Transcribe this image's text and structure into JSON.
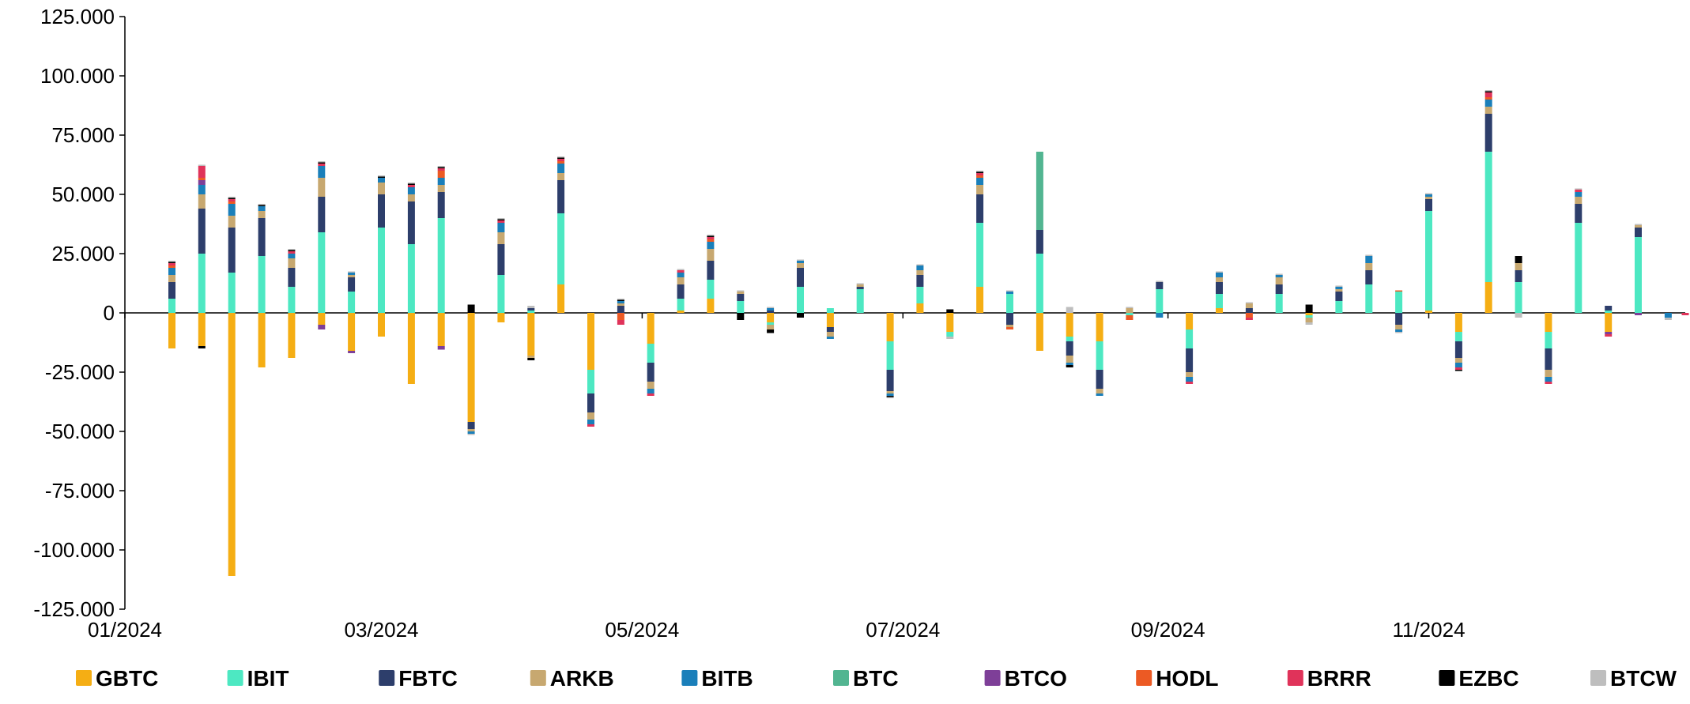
{
  "chart_data": {
    "type": "bar",
    "stacked": true,
    "title": "",
    "xlabel": "",
    "ylabel": "",
    "ylim": [
      -125000,
      125000
    ],
    "yticks": [
      125000,
      100000,
      75000,
      50000,
      25000,
      0,
      -25000,
      -50000,
      -75000,
      -100000,
      -125000
    ],
    "ytick_labels": [
      "125.000",
      "100.000",
      "75.000",
      "50.000",
      "25.000",
      "0",
      "-25.000",
      "-50.000",
      "-75.000",
      "-100.000",
      "-125.000"
    ],
    "xlim": [
      "2024-01-01",
      "2024-12-31"
    ],
    "xtick_labels": [
      {
        "date": "2024-01-01",
        "label": "01/2024"
      },
      {
        "date": "2024-03-01",
        "label": "03/2024"
      },
      {
        "date": "2024-05-01",
        "label": "05/2024"
      },
      {
        "date": "2024-07-01",
        "label": "07/2024"
      },
      {
        "date": "2024-09-01",
        "label": "09/2024"
      },
      {
        "date": "2024-11-01",
        "label": "11/2024"
      }
    ],
    "series_names": [
      "GBTC",
      "IBIT",
      "FBTC",
      "ARKB",
      "BITB",
      "BTC",
      "BTCO",
      "HODL",
      "BRRR",
      "EZBC",
      "BTCW"
    ],
    "colors": {
      "GBTC": "#F5AE14",
      "IBIT": "#4DE8C2",
      "FBTC": "#2D3E6B",
      "ARKB": "#C7A870",
      "BITB": "#1A7FBA",
      "BTC": "#52B591",
      "BTCO": "#7E3F98",
      "HODL": "#EC5A24",
      "BRRR": "#E0335A",
      "EZBC": "#000000",
      "BTCW": "#BEBEBE"
    },
    "legend_position": "bottom",
    "grid": false,
    "weeks": [
      {
        "date": "2024-01-12",
        "GBTC": -15000,
        "IBIT": 6000,
        "FBTC": 7000,
        "ARKB": 3000,
        "BITB": 3000,
        "BTC": 0,
        "BTCO": 0,
        "HODL": 1000,
        "BRRR": 1000,
        "EZBC": 500,
        "BTCW": 500
      },
      {
        "date": "2024-01-19",
        "GBTC": -14000,
        "IBIT": 25000,
        "FBTC": 19000,
        "ARKB": 6000,
        "BITB": 4000,
        "BTC": 0,
        "BTCO": 2000,
        "HODL": 1000,
        "BRRR": 5000,
        "EZBC": -1000,
        "BTCW": 500
      },
      {
        "date": "2024-01-26",
        "GBTC": -111000,
        "IBIT": 17000,
        "FBTC": 19000,
        "ARKB": 5000,
        "BITB": 5000,
        "BTC": 0,
        "BTCO": 0,
        "HODL": 1000,
        "BRRR": 1000,
        "EZBC": 500,
        "BTCW": 500
      },
      {
        "date": "2024-02-02",
        "GBTC": -23000,
        "IBIT": 24000,
        "FBTC": 16000,
        "ARKB": 3000,
        "BITB": 2000,
        "BTC": 0,
        "BTCO": 0,
        "HODL": 0,
        "BRRR": 0,
        "EZBC": 500,
        "BTCW": 500
      },
      {
        "date": "2024-02-09",
        "GBTC": -19000,
        "IBIT": 11000,
        "FBTC": 8000,
        "ARKB": 4000,
        "BITB": 2000,
        "BTC": 0,
        "BTCO": 0,
        "HODL": 0,
        "BRRR": 1000,
        "EZBC": 500,
        "BTCW": 500
      },
      {
        "date": "2024-02-16",
        "GBTC": -5000,
        "IBIT": 34000,
        "FBTC": 15000,
        "ARKB": 8000,
        "BITB": 5000,
        "BTC": 0,
        "BTCO": -2000,
        "HODL": 0,
        "BRRR": 1000,
        "EZBC": 500,
        "BTCW": 500
      },
      {
        "date": "2024-02-23",
        "GBTC": -16000,
        "IBIT": 9000,
        "FBTC": 6000,
        "ARKB": 1000,
        "BITB": 1000,
        "BTC": 0,
        "BTCO": -1000,
        "HODL": 0,
        "BRRR": 0,
        "EZBC": 0,
        "BTCW": 500
      },
      {
        "date": "2024-03-01",
        "GBTC": -10000,
        "IBIT": 36000,
        "FBTC": 14000,
        "ARKB": 5000,
        "BITB": 2000,
        "BTC": 0,
        "BTCO": 0,
        "HODL": 0,
        "BRRR": 0,
        "EZBC": 500,
        "BTCW": 500
      },
      {
        "date": "2024-03-08",
        "GBTC": -30000,
        "IBIT": 29000,
        "FBTC": 18000,
        "ARKB": 3000,
        "BITB": 3000,
        "BTC": 0,
        "BTCO": 0,
        "HODL": 0,
        "BRRR": 1000,
        "EZBC": 500,
        "BTCW": 500
      },
      {
        "date": "2024-03-15",
        "GBTC": -14000,
        "IBIT": 40000,
        "FBTC": 11000,
        "ARKB": 3000,
        "BITB": 3000,
        "BTC": 0,
        "BTCO": -1500,
        "HODL": 3000,
        "BRRR": 1000,
        "EZBC": 500,
        "BTCW": 500
      },
      {
        "date": "2024-03-22",
        "GBTC": -46000,
        "IBIT": 0,
        "FBTC": -3000,
        "ARKB": -1000,
        "BITB": -1000,
        "BTC": 0,
        "BTCO": 0,
        "HODL": 0,
        "BRRR": 0,
        "EZBC": 3500,
        "BTCW": -500
      },
      {
        "date": "2024-03-29",
        "GBTC": -4000,
        "IBIT": 16000,
        "FBTC": 13000,
        "ARKB": 5000,
        "BITB": 4000,
        "BTC": 0,
        "BTCO": 0,
        "HODL": 0,
        "BRRR": 1000,
        "EZBC": 500,
        "BTCW": 500
      },
      {
        "date": "2024-04-05",
        "GBTC": -18000,
        "IBIT": 1000,
        "FBTC": 1000,
        "ARKB": -1000,
        "BITB": 0,
        "BTC": 0,
        "BTCO": 0,
        "HODL": 0,
        "BRRR": 0,
        "EZBC": -1000,
        "BTCW": 1000
      },
      {
        "date": "2024-04-12",
        "GBTC": 12000,
        "IBIT": 30000,
        "FBTC": 14000,
        "ARKB": 3000,
        "BITB": 4000,
        "BTC": 0,
        "BTCO": 0,
        "HODL": 1000,
        "BRRR": 1000,
        "EZBC": 500,
        "BTCW": 500
      },
      {
        "date": "2024-04-19",
        "GBTC": -24000,
        "IBIT": -10000,
        "FBTC": -8000,
        "ARKB": -3000,
        "BITB": -2000,
        "BTC": 0,
        "BTCO": 0,
        "HODL": 0,
        "BRRR": -1000,
        "EZBC": 0,
        "BTCW": 0
      },
      {
        "date": "2024-04-26",
        "GBTC": 0,
        "IBIT": 0,
        "FBTC": 3000,
        "ARKB": 1000,
        "BITB": 1000,
        "BTC": 0,
        "BTCO": 0,
        "HODL": -3000,
        "BRRR": -2000,
        "EZBC": 500,
        "BTCW": 500
      },
      {
        "date": "2024-05-03",
        "GBTC": -13000,
        "IBIT": -8000,
        "FBTC": -8000,
        "ARKB": -3000,
        "BITB": -2000,
        "BTC": 0,
        "BTCO": 0,
        "HODL": 0,
        "BRRR": -1000,
        "EZBC": 0,
        "BTCW": 0
      },
      {
        "date": "2024-05-10",
        "GBTC": 1000,
        "IBIT": 5000,
        "FBTC": 6000,
        "ARKB": 3000,
        "BITB": 2000,
        "BTC": 0,
        "BTCO": 0,
        "HODL": 0,
        "BRRR": 1000,
        "EZBC": 0,
        "BTCW": 500
      },
      {
        "date": "2024-05-17",
        "GBTC": 6000,
        "IBIT": 8000,
        "FBTC": 8000,
        "ARKB": 5000,
        "BITB": 3000,
        "BTC": 0,
        "BTCO": 0,
        "HODL": 1000,
        "BRRR": 1000,
        "EZBC": 500,
        "BTCW": 500
      },
      {
        "date": "2024-05-24",
        "GBTC": 0,
        "IBIT": 5000,
        "FBTC": 3000,
        "ARKB": 1000,
        "BITB": 0,
        "BTC": 0,
        "BTCO": 0,
        "HODL": 0,
        "BRRR": 0,
        "EZBC": -3000,
        "BTCW": 500
      },
      {
        "date": "2024-05-31",
        "GBTC": -4000,
        "IBIT": -1000,
        "FBTC": 1000,
        "ARKB": -2000,
        "BITB": 1000,
        "BTC": 0,
        "BTCO": 0,
        "HODL": 0,
        "BRRR": 0,
        "EZBC": -1500,
        "BTCW": 500
      },
      {
        "date": "2024-06-07",
        "GBTC": 0,
        "IBIT": 11000,
        "FBTC": 8000,
        "ARKB": 2000,
        "BITB": 1000,
        "BTC": 0,
        "BTCO": 0,
        "HODL": 0,
        "BRRR": 0,
        "EZBC": -2000,
        "BTCW": 500
      },
      {
        "date": "2024-06-14",
        "GBTC": -6000,
        "IBIT": 2000,
        "FBTC": -2000,
        "ARKB": -2000,
        "BITB": -1000,
        "BTC": 0,
        "BTCO": 0,
        "HODL": 0,
        "BRRR": 0,
        "EZBC": 0,
        "BTCW": 0
      },
      {
        "date": "2024-06-21",
        "GBTC": 0,
        "IBIT": 10000,
        "FBTC": 1000,
        "ARKB": 1000,
        "BITB": 0,
        "BTC": 0,
        "BTCO": 0,
        "HODL": 0,
        "BRRR": 0,
        "EZBC": 0,
        "BTCW": 500
      },
      {
        "date": "2024-06-28",
        "GBTC": -12000,
        "IBIT": -12000,
        "FBTC": -9000,
        "ARKB": -1000,
        "BITB": -1000,
        "BTC": 0,
        "BTCO": 0,
        "HODL": 0,
        "BRRR": 0,
        "EZBC": -500,
        "BTCW": -500
      },
      {
        "date": "2024-07-05",
        "GBTC": 4000,
        "IBIT": 7000,
        "FBTC": 5000,
        "ARKB": 2000,
        "BITB": 2000,
        "BTC": 0,
        "BTCO": 0,
        "HODL": 0,
        "BRRR": 0,
        "EZBC": 0,
        "BTCW": 500
      },
      {
        "date": "2024-07-12",
        "GBTC": -8000,
        "IBIT": -2000,
        "FBTC": 0,
        "ARKB": 0,
        "BITB": 0,
        "BTC": 0,
        "BTCO": 0,
        "HODL": 0,
        "BRRR": 0,
        "EZBC": 1500,
        "BTCW": -1000
      },
      {
        "date": "2024-07-19",
        "GBTC": 11000,
        "IBIT": 27000,
        "FBTC": 12000,
        "ARKB": 4000,
        "BITB": 3000,
        "BTC": 0,
        "BTCO": 0,
        "HODL": 1000,
        "BRRR": 1000,
        "EZBC": 500,
        "BTCW": 500
      },
      {
        "date": "2024-07-26",
        "GBTC": 0,
        "IBIT": 8000,
        "FBTC": -5000,
        "ARKB": -1000,
        "BITB": 1000,
        "BTC": 0,
        "BTCO": 0,
        "HODL": -1000,
        "BRRR": 0,
        "EZBC": 0,
        "BTCW": 500
      },
      {
        "date": "2024-08-02",
        "GBTC": -16000,
        "IBIT": 25000,
        "FBTC": 10000,
        "ARKB": 0,
        "BITB": 0,
        "BTC": 33000,
        "BTCO": 0,
        "HODL": 0,
        "BRRR": 0,
        "EZBC": 0,
        "BTCW": 0
      },
      {
        "date": "2024-08-09",
        "GBTC": -10000,
        "IBIT": -2000,
        "FBTC": -6000,
        "ARKB": -3000,
        "BITB": -1000,
        "BTC": 0,
        "BTCO": 0,
        "HODL": 0,
        "BRRR": 0,
        "EZBC": -1000,
        "BTCW": 2500
      },
      {
        "date": "2024-08-16",
        "GBTC": -12000,
        "IBIT": -12000,
        "FBTC": -8000,
        "ARKB": -2000,
        "BITB": -1000,
        "BTC": 0,
        "BTCO": 0,
        "HODL": 0,
        "BRRR": 0,
        "EZBC": 0,
        "BTCW": 0
      },
      {
        "date": "2024-08-23",
        "GBTC": 0,
        "IBIT": -1000,
        "FBTC": 0,
        "ARKB": 2000,
        "BITB": 0,
        "BTC": 0,
        "BTCO": 0,
        "HODL": -2000,
        "BRRR": 0,
        "EZBC": 0,
        "BTCW": 500
      },
      {
        "date": "2024-08-30",
        "GBTC": 0,
        "IBIT": 10000,
        "FBTC": 3000,
        "ARKB": 0,
        "BITB": -2000,
        "BTC": 0,
        "BTCO": 0,
        "HODL": 0,
        "BRRR": 0,
        "EZBC": 0,
        "BTCW": 500
      },
      {
        "date": "2024-09-06",
        "GBTC": -7000,
        "IBIT": -8000,
        "FBTC": -10000,
        "ARKB": -2000,
        "BITB": -2000,
        "BTC": 0,
        "BTCO": 0,
        "HODL": 0,
        "BRRR": -1000,
        "EZBC": 0,
        "BTCW": 0
      },
      {
        "date": "2024-09-13",
        "GBTC": 2000,
        "IBIT": 6000,
        "FBTC": 5000,
        "ARKB": 2000,
        "BITB": 2000,
        "BTC": 0,
        "BTCO": 0,
        "HODL": 0,
        "BRRR": 0,
        "EZBC": 0,
        "BTCW": 500
      },
      {
        "date": "2024-09-20",
        "GBTC": 0,
        "IBIT": 0,
        "FBTC": 2000,
        "ARKB": 2000,
        "BITB": 0,
        "BTC": 0,
        "BTCO": 0,
        "HODL": -2000,
        "BRRR": -1000,
        "EZBC": 0,
        "BTCW": 500
      },
      {
        "date": "2024-09-27",
        "GBTC": 0,
        "IBIT": 8000,
        "FBTC": 4000,
        "ARKB": 3000,
        "BITB": 1000,
        "BTC": 0,
        "BTCO": 0,
        "HODL": 0,
        "BRRR": 0,
        "EZBC": 0,
        "BTCW": 500
      },
      {
        "date": "2024-10-04",
        "GBTC": -1000,
        "IBIT": -1000,
        "FBTC": 0,
        "ARKB": -2000,
        "BITB": 0,
        "BTC": 0,
        "BTCO": 0,
        "HODL": 0,
        "BRRR": 0,
        "EZBC": 3500,
        "BTCW": -1000
      },
      {
        "date": "2024-10-11",
        "GBTC": 0,
        "IBIT": 5000,
        "FBTC": 4000,
        "ARKB": 1000,
        "BITB": 1000,
        "BTC": 0,
        "BTCO": 0,
        "HODL": 0,
        "BRRR": 0,
        "EZBC": 0,
        "BTCW": 500
      },
      {
        "date": "2024-10-18",
        "GBTC": 0,
        "IBIT": 12000,
        "FBTC": 6000,
        "ARKB": 3000,
        "BITB": 3000,
        "BTC": 0,
        "BTCO": 0,
        "HODL": 0,
        "BRRR": 0,
        "EZBC": 0,
        "BTCW": 500
      },
      {
        "date": "2024-10-25",
        "GBTC": 0,
        "IBIT": 9000,
        "FBTC": -5000,
        "ARKB": -2000,
        "BITB": -1000,
        "BTC": 0,
        "BTCO": 0,
        "HODL": 500,
        "BRRR": 0,
        "EZBC": 0,
        "BTCW": -500
      },
      {
        "date": "2024-11-01",
        "GBTC": 1000,
        "IBIT": 42000,
        "FBTC": 5000,
        "ARKB": 1000,
        "BITB": 1000,
        "BTC": 0,
        "BTCO": 0,
        "HODL": 0,
        "BRRR": 0,
        "EZBC": 0,
        "BTCW": 500
      },
      {
        "date": "2024-11-08",
        "GBTC": -8000,
        "IBIT": -4000,
        "FBTC": -7000,
        "ARKB": -2000,
        "BITB": -2000,
        "BTC": 0,
        "BTCO": 0,
        "HODL": 0,
        "BRRR": -1000,
        "EZBC": -500,
        "BTCW": 0
      },
      {
        "date": "2024-11-15",
        "GBTC": 13000,
        "IBIT": 55000,
        "FBTC": 16000,
        "ARKB": 3000,
        "BITB": 3000,
        "BTC": 0,
        "BTCO": 0,
        "HODL": 1000,
        "BRRR": 2000,
        "EZBC": 500,
        "BTCW": 500
      },
      {
        "date": "2024-11-22",
        "GBTC": 0,
        "IBIT": 13000,
        "FBTC": 5000,
        "ARKB": 3000,
        "BITB": 0,
        "BTC": 0,
        "BTCO": 0,
        "HODL": 0,
        "BRRR": 0,
        "EZBC": 3000,
        "BTCW": -2000
      },
      {
        "date": "2024-11-29",
        "GBTC": -8000,
        "IBIT": -7000,
        "FBTC": -9000,
        "ARKB": -3000,
        "BITB": -2000,
        "BTC": 0,
        "BTCO": 0,
        "HODL": 0,
        "BRRR": -1000,
        "EZBC": 0,
        "BTCW": 0
      },
      {
        "date": "2024-12-06",
        "GBTC": 0,
        "IBIT": 38000,
        "FBTC": 8000,
        "ARKB": 3000,
        "BITB": 2000,
        "BTC": 0,
        "BTCO": 0,
        "HODL": 0,
        "BRRR": 1000,
        "EZBC": 0,
        "BTCW": 500
      },
      {
        "date": "2024-12-13",
        "GBTC": -8000,
        "IBIT": 1000,
        "FBTC": 2000,
        "ARKB": 0,
        "BITB": 0,
        "BTC": 0,
        "BTCO": -1000,
        "HODL": 0,
        "BRRR": -1000,
        "EZBC": 0,
        "BTCW": 0
      },
      {
        "date": "2024-12-20",
        "GBTC": 0,
        "IBIT": 32000,
        "FBTC": 4000,
        "ARKB": 1000,
        "BITB": 0,
        "BTC": 0,
        "BTCO": -1000,
        "HODL": 0,
        "BRRR": 0,
        "EZBC": 0,
        "BTCW": 500
      },
      {
        "date": "2024-12-27",
        "GBTC": 0,
        "IBIT": 0,
        "FBTC": 0,
        "ARKB": 0,
        "BITB": -2000,
        "BTC": 0,
        "BTCO": 0,
        "HODL": 0,
        "BRRR": 0,
        "EZBC": 0,
        "BTCW": -1000
      },
      {
        "date": "2024-12-31",
        "GBTC": 0,
        "IBIT": 0,
        "FBTC": 0,
        "ARKB": 0,
        "BITB": 0,
        "BTC": 0,
        "BTCO": 0,
        "HODL": 0,
        "BRRR": -1000,
        "EZBC": 0,
        "BTCW": 0
      }
    ]
  }
}
